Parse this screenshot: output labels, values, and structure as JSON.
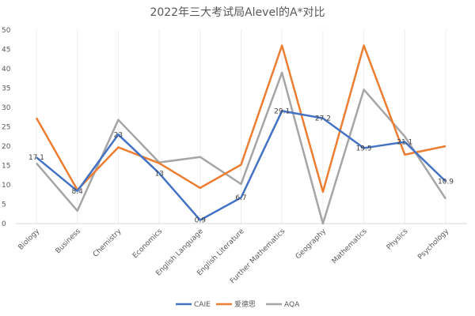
{
  "chart_data": {
    "type": "line",
    "title": "2022年三大考试局Alevel的A*对比",
    "categories": [
      "Biology",
      "Business",
      "Chemistry",
      "Economics",
      "English Language",
      "English Literature",
      "Further Mathematics",
      "Geography",
      "Mathematics",
      "Physics",
      "Psychology"
    ],
    "ylim": [
      0,
      50
    ],
    "yticks": [
      0,
      5,
      10,
      15,
      20,
      25,
      30,
      35,
      40,
      45,
      50
    ],
    "grid": "vertical",
    "legend": "bottom",
    "series": [
      {
        "name": "CAIE",
        "color": "#4472C4",
        "values": [
          17.1,
          8.4,
          23,
          13,
          0.9,
          6.7,
          29.1,
          27.2,
          19.5,
          21.1,
          10.9
        ],
        "labels": [
          "17.1",
          "8.4",
          "23",
          "13",
          "0.9",
          "6.7",
          "29.1",
          "27.2",
          "19.5",
          "21.1",
          "10.9"
        ]
      },
      {
        "name": "爱德思",
        "color": "#ED7D31",
        "values": [
          27.3,
          8.7,
          19.7,
          15.6,
          9.2,
          15.2,
          46,
          8.2,
          46,
          17.8,
          20
        ]
      },
      {
        "name": "AQA",
        "color": "#A5A5A5",
        "values": [
          15.6,
          3.3,
          26.8,
          15.8,
          17.2,
          10.2,
          39,
          0,
          34.6,
          22.5,
          6.4
        ]
      }
    ]
  }
}
